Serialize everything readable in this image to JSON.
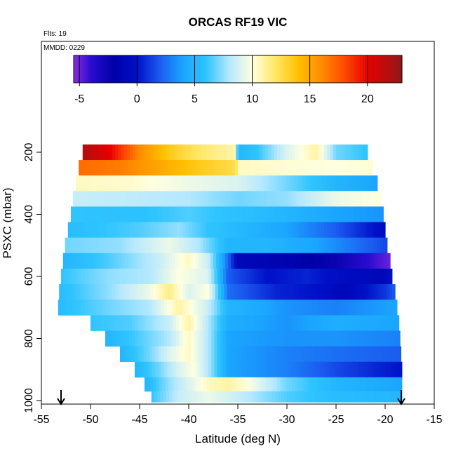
{
  "chart_data": {
    "type": "heatmap",
    "title": "ORCAS RF19 VIC",
    "flights_note": "Flts: 19",
    "date_note": "MMDD: 0229",
    "xlabel": "Latitude (deg N)",
    "ylabel": "PSXC (mbar)",
    "xlim": [
      -55,
      -15
    ],
    "ylim": [
      1000,
      80
    ],
    "y_inverted": true,
    "x_ticks": [
      -55,
      -50,
      -45,
      -40,
      -35,
      -30,
      -25,
      -20,
      -15
    ],
    "y_ticks": [
      200,
      400,
      600,
      800,
      1000
    ],
    "colorbar": {
      "min": -5.5,
      "max": 23,
      "ticks": [
        -5,
        0,
        5,
        10,
        15,
        20
      ],
      "stops": [
        {
          "v": -5.5,
          "c": "#8a2be2"
        },
        {
          "v": -4,
          "c": "#2a0ccf"
        },
        {
          "v": -2,
          "c": "#0000a8"
        },
        {
          "v": 0,
          "c": "#0010c8"
        },
        {
          "v": 2,
          "c": "#1b5cf0"
        },
        {
          "v": 4,
          "c": "#1aa6ff"
        },
        {
          "v": 6,
          "c": "#2ec4ff"
        },
        {
          "v": 8,
          "c": "#b5e8ff"
        },
        {
          "v": 10,
          "c": "#ffffe0"
        },
        {
          "v": 12,
          "c": "#ffe766"
        },
        {
          "v": 14,
          "c": "#ffc000"
        },
        {
          "v": 16,
          "c": "#ff8c00"
        },
        {
          "v": 18,
          "c": "#ff4a00"
        },
        {
          "v": 20,
          "c": "#e60000"
        },
        {
          "v": 22,
          "c": "#b01010"
        },
        {
          "v": 23,
          "c": "#8c1a1a"
        }
      ]
    },
    "bands": [
      {
        "p": 200,
        "lat0": -50.8,
        "lat1": -21.8,
        "knots": [
          [
            -50.8,
            22
          ],
          [
            -48,
            20
          ],
          [
            -45,
            16
          ],
          [
            -42,
            13.5
          ],
          [
            -39,
            12
          ],
          [
            -35.2,
            10.8
          ],
          [
            -35,
            5
          ],
          [
            -33,
            6
          ],
          [
            -30,
            9
          ],
          [
            -27,
            11
          ],
          [
            -25,
            7
          ],
          [
            -22,
            6
          ]
        ]
      },
      {
        "p": 250,
        "lat0": -51.2,
        "lat1": -21.3,
        "knots": [
          [
            -51.2,
            17
          ],
          [
            -47,
            16.5
          ],
          [
            -43,
            15
          ],
          [
            -39,
            13.5
          ],
          [
            -35.2,
            12.5
          ],
          [
            -35,
            10.5
          ],
          [
            -30,
            10.2
          ],
          [
            -25,
            10
          ],
          [
            -21.3,
            10.2
          ]
        ]
      },
      {
        "p": 300,
        "lat0": -51.5,
        "lat1": -20.8,
        "knots": [
          [
            -51.5,
            10.5
          ],
          [
            -46,
            10.3
          ],
          [
            -40,
            9.5
          ],
          [
            -35,
            9
          ],
          [
            -30,
            7
          ],
          [
            -25,
            5
          ],
          [
            -21,
            4
          ]
        ]
      },
      {
        "p": 350,
        "lat0": -51.8,
        "lat1": -20.4,
        "knots": [
          [
            -51.8,
            8.5
          ],
          [
            -46,
            8.3
          ],
          [
            -40,
            8
          ],
          [
            -35,
            7
          ],
          [
            -30,
            7.5
          ],
          [
            -25,
            9.5
          ],
          [
            -20.4,
            10
          ]
        ]
      },
      {
        "p": 400,
        "lat0": -52.0,
        "lat1": -20.2,
        "knots": [
          [
            -52,
            6
          ],
          [
            -45,
            5.8
          ],
          [
            -40,
            6.5
          ],
          [
            -37,
            6
          ],
          [
            -33,
            5.5
          ],
          [
            -30,
            5
          ],
          [
            -25,
            4
          ],
          [
            -20.2,
            3.5
          ]
        ]
      },
      {
        "p": 450,
        "lat0": -52.3,
        "lat1": -20.0,
        "knots": [
          [
            -52.3,
            5.5
          ],
          [
            -45,
            6.5
          ],
          [
            -41,
            7.5
          ],
          [
            -38,
            6
          ],
          [
            -34,
            5
          ],
          [
            -30,
            4
          ],
          [
            -25,
            2
          ],
          [
            -20,
            -0.5
          ]
        ]
      },
      {
        "p": 500,
        "lat0": -52.6,
        "lat1": -19.8,
        "knots": [
          [
            -52.6,
            7
          ],
          [
            -47,
            7.5
          ],
          [
            -42,
            9.5
          ],
          [
            -39,
            8
          ],
          [
            -36,
            5
          ],
          [
            -32,
            5
          ],
          [
            -27,
            4
          ],
          [
            -20,
            1.5
          ]
        ]
      },
      {
        "p": 550,
        "lat0": -52.8,
        "lat1": -19.5,
        "knots": [
          [
            -52.8,
            5
          ],
          [
            -48,
            6.5
          ],
          [
            -43,
            8.5
          ],
          [
            -40,
            10.5
          ],
          [
            -38,
            8.5
          ],
          [
            -36.5,
            4
          ],
          [
            -35,
            -1
          ],
          [
            -30,
            -1.5
          ],
          [
            -25,
            -2.5
          ],
          [
            -19.5,
            -5
          ]
        ]
      },
      {
        "p": 600,
        "lat0": -53.0,
        "lat1": -19.3,
        "knots": [
          [
            -53,
            6
          ],
          [
            -48,
            7.5
          ],
          [
            -44,
            8
          ],
          [
            -41,
            10
          ],
          [
            -38,
            9
          ],
          [
            -36,
            2
          ],
          [
            -32,
            0
          ],
          [
            -28,
            0.5
          ],
          [
            -24,
            -0.5
          ],
          [
            -20,
            -1
          ],
          [
            -19.3,
            0
          ]
        ]
      },
      {
        "p": 650,
        "lat0": -53.2,
        "lat1": -19.0,
        "knots": [
          [
            -53.2,
            5.5
          ],
          [
            -48,
            7.5
          ],
          [
            -44,
            9.5
          ],
          [
            -42,
            11.5
          ],
          [
            -40,
            9
          ],
          [
            -38,
            10
          ],
          [
            -36,
            2.5
          ],
          [
            -31,
            0.5
          ],
          [
            -27,
            0
          ],
          [
            -24,
            -1
          ],
          [
            -20,
            1
          ],
          [
            -19,
            2
          ]
        ]
      },
      {
        "p": 700,
        "lat0": -53.3,
        "lat1": -18.8,
        "knots": [
          [
            -53.3,
            5.5
          ],
          [
            -48,
            7
          ],
          [
            -44,
            8
          ],
          [
            -41,
            11
          ],
          [
            -38,
            8.5
          ],
          [
            -36,
            5
          ],
          [
            -30,
            3.5
          ],
          [
            -25,
            3
          ],
          [
            -18.8,
            4
          ]
        ]
      },
      {
        "p": 750,
        "lat0": -50.0,
        "lat1": -18.6,
        "knots": [
          [
            -50,
            6
          ],
          [
            -46,
            6.5
          ],
          [
            -42,
            8.5
          ],
          [
            -40,
            11
          ],
          [
            -38,
            8
          ],
          [
            -36,
            4.5
          ],
          [
            -30,
            3.5
          ],
          [
            -25,
            4.5
          ],
          [
            -18.6,
            4
          ]
        ]
      },
      {
        "p": 800,
        "lat0": -48.5,
        "lat1": -18.5,
        "knots": [
          [
            -48.5,
            5
          ],
          [
            -45,
            6.5
          ],
          [
            -42,
            8
          ],
          [
            -40,
            10.5
          ],
          [
            -38,
            8
          ],
          [
            -36,
            4
          ],
          [
            -30,
            3.5
          ],
          [
            -25,
            3.5
          ],
          [
            -18.5,
            3
          ]
        ]
      },
      {
        "p": 850,
        "lat0": -47.0,
        "lat1": -18.4,
        "knots": [
          [
            -47,
            5
          ],
          [
            -44,
            7
          ],
          [
            -42,
            9
          ],
          [
            -40,
            10.5
          ],
          [
            -38,
            8
          ],
          [
            -36,
            4
          ],
          [
            -30,
            3
          ],
          [
            -25,
            2.5
          ],
          [
            -18.4,
            2
          ]
        ]
      },
      {
        "p": 900,
        "lat0": -45.5,
        "lat1": -18.3,
        "knots": [
          [
            -45.5,
            5
          ],
          [
            -43,
            7
          ],
          [
            -41,
            9
          ],
          [
            -39.5,
            10
          ],
          [
            -38,
            8
          ],
          [
            -36,
            4
          ],
          [
            -30,
            3
          ],
          [
            -25,
            1.5
          ],
          [
            -18.3,
            0
          ]
        ]
      },
      {
        "p": 950,
        "lat0": -44.5,
        "lat1": -18.3,
        "knots": [
          [
            -44.5,
            5
          ],
          [
            -42,
            7.5
          ],
          [
            -40,
            9
          ],
          [
            -38,
            10.5
          ],
          [
            -36,
            11
          ],
          [
            -34,
            10
          ],
          [
            -30,
            7
          ],
          [
            -25,
            5
          ],
          [
            -18.3,
            4
          ]
        ]
      },
      {
        "p": 990,
        "lat0": -43.8,
        "lat1": -18.3,
        "knots": [
          [
            -43.8,
            6
          ],
          [
            -41,
            8.5
          ],
          [
            -38,
            9.5
          ],
          [
            -35,
            8.5
          ],
          [
            -30,
            6.5
          ],
          [
            -25,
            5.5
          ],
          [
            -18.3,
            5
          ]
        ]
      }
    ]
  }
}
